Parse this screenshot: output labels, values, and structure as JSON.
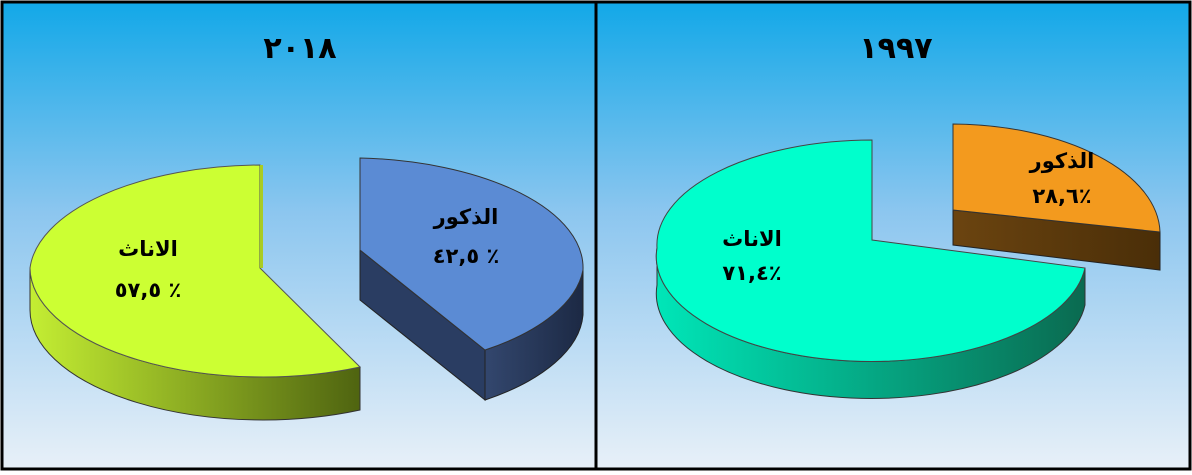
{
  "chart_data": [
    {
      "type": "pie",
      "title": "٢٠١٨",
      "slices": [
        {
          "label": "الذكور",
          "value_text": "٤٢,٥ ٪",
          "value": 42.5,
          "color": "#5b8bd4",
          "side_color": "#26385b"
        },
        {
          "label": "الاناث",
          "value_text": "٥٧,٥ ٪",
          "value": 57.5,
          "color": "#ccff33",
          "side_color": "#7a9a1c"
        }
      ]
    },
    {
      "type": "pie",
      "title": "١٩٩٧",
      "slices": [
        {
          "label": "الذكور",
          "value_text": "٢٨,٦٪",
          "value": 28.6,
          "color": "#f39a1e",
          "side_color": "#5c3a0d"
        },
        {
          "label": "الاناث",
          "value_text": "٧١,٤٪",
          "value": 71.4,
          "color": "#00ffcc",
          "side_color": "#0f8b67"
        }
      ]
    }
  ]
}
